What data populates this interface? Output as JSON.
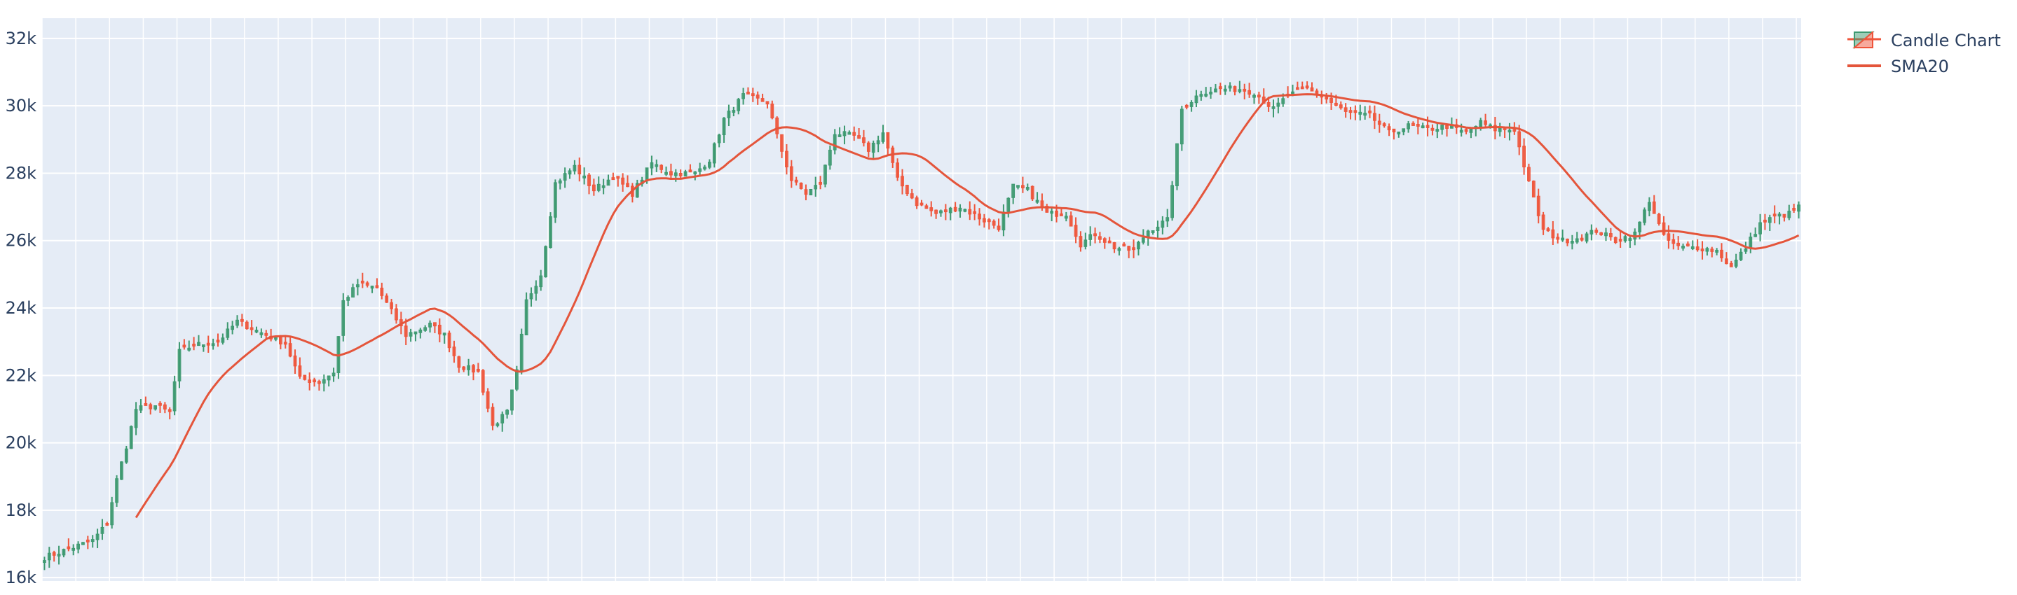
{
  "chart_data": {
    "type": "candlestick",
    "xlabel": "",
    "ylabel": "",
    "ylim": [
      15900,
      32600
    ],
    "y_ticks": [
      16000,
      18000,
      20000,
      22000,
      24000,
      26000,
      28000,
      30000,
      32000
    ],
    "y_tick_labels": [
      "16k",
      "18k",
      "20k",
      "22k",
      "24k",
      "26k",
      "28k",
      "30k",
      "32k"
    ],
    "grid": true,
    "legend_position": "top-right",
    "x_tick_labels_visible": false,
    "series": [
      {
        "name": "Candle Chart",
        "type": "candlestick",
        "increasing_color": "#3d9970",
        "decreasing_color": "#ef553b"
      },
      {
        "name": "SMA20",
        "type": "line",
        "color": "#e4553b"
      }
    ],
    "close_anchors": [
      [
        0,
        16600
      ],
      [
        5,
        16850
      ],
      [
        10,
        17100
      ],
      [
        13,
        17600
      ],
      [
        15,
        18900
      ],
      [
        17,
        19900
      ],
      [
        19,
        21000
      ],
      [
        23,
        21100
      ],
      [
        26,
        20900
      ],
      [
        28,
        22700
      ],
      [
        31,
        22900
      ],
      [
        36,
        23000
      ],
      [
        40,
        23600
      ],
      [
        43,
        23400
      ],
      [
        46,
        23200
      ],
      [
        50,
        22950
      ],
      [
        53,
        21900
      ],
      [
        57,
        21800
      ],
      [
        60,
        22100
      ],
      [
        62,
        24200
      ],
      [
        65,
        24700
      ],
      [
        69,
        24600
      ],
      [
        72,
        23900
      ],
      [
        75,
        23200
      ],
      [
        80,
        23500
      ],
      [
        83,
        23200
      ],
      [
        86,
        22300
      ],
      [
        90,
        22100
      ],
      [
        93,
        20500
      ],
      [
        96,
        20900
      ],
      [
        98,
        22100
      ],
      [
        100,
        24200
      ],
      [
        103,
        25000
      ],
      [
        106,
        27700
      ],
      [
        110,
        28200
      ],
      [
        114,
        27500
      ],
      [
        118,
        27900
      ],
      [
        122,
        27400
      ],
      [
        126,
        28300
      ],
      [
        130,
        28000
      ],
      [
        135,
        28000
      ],
      [
        138,
        28400
      ],
      [
        141,
        29600
      ],
      [
        145,
        30300
      ],
      [
        150,
        30100
      ],
      [
        152,
        29100
      ],
      [
        155,
        27800
      ],
      [
        158,
        27400
      ],
      [
        161,
        27700
      ],
      [
        164,
        29200
      ],
      [
        168,
        29100
      ],
      [
        171,
        28700
      ],
      [
        174,
        29200
      ],
      [
        177,
        27800
      ],
      [
        181,
        27100
      ],
      [
        185,
        26800
      ],
      [
        190,
        27000
      ],
      [
        195,
        26600
      ],
      [
        198,
        26400
      ],
      [
        201,
        27600
      ],
      [
        204,
        27500
      ],
      [
        208,
        26800
      ],
      [
        212,
        26800
      ],
      [
        215,
        25900
      ],
      [
        218,
        26200
      ],
      [
        222,
        25800
      ],
      [
        226,
        25700
      ],
      [
        229,
        26300
      ],
      [
        233,
        26600
      ],
      [
        236,
        29900
      ],
      [
        240,
        30400
      ],
      [
        244,
        30500
      ],
      [
        248,
        30500
      ],
      [
        251,
        30400
      ],
      [
        255,
        29900
      ],
      [
        258,
        30300
      ],
      [
        262,
        30500
      ],
      [
        266,
        30200
      ],
      [
        270,
        29800
      ],
      [
        275,
        29700
      ],
      [
        279,
        29200
      ],
      [
        283,
        29400
      ],
      [
        287,
        29300
      ],
      [
        291,
        29400
      ],
      [
        295,
        29200
      ],
      [
        298,
        29500
      ],
      [
        301,
        29300
      ],
      [
        305,
        29300
      ],
      [
        308,
        27700
      ],
      [
        311,
        26300
      ],
      [
        315,
        26000
      ],
      [
        319,
        26100
      ],
      [
        322,
        26300
      ],
      [
        326,
        26000
      ],
      [
        330,
        26200
      ],
      [
        333,
        27200
      ],
      [
        336,
        26100
      ],
      [
        339,
        25800
      ],
      [
        343,
        25800
      ],
      [
        347,
        25700
      ],
      [
        350,
        25200
      ],
      [
        353,
        25800
      ],
      [
        356,
        26500
      ],
      [
        359,
        26700
      ],
      [
        362,
        26800
      ],
      [
        364,
        27000
      ]
    ],
    "close_noise_amplitude": 90,
    "body_min": 60,
    "wick_max": 260,
    "x_count": 365,
    "sma_period": 20
  },
  "legend": {
    "candle_label": "Candle Chart",
    "sma_label": "SMA20"
  }
}
